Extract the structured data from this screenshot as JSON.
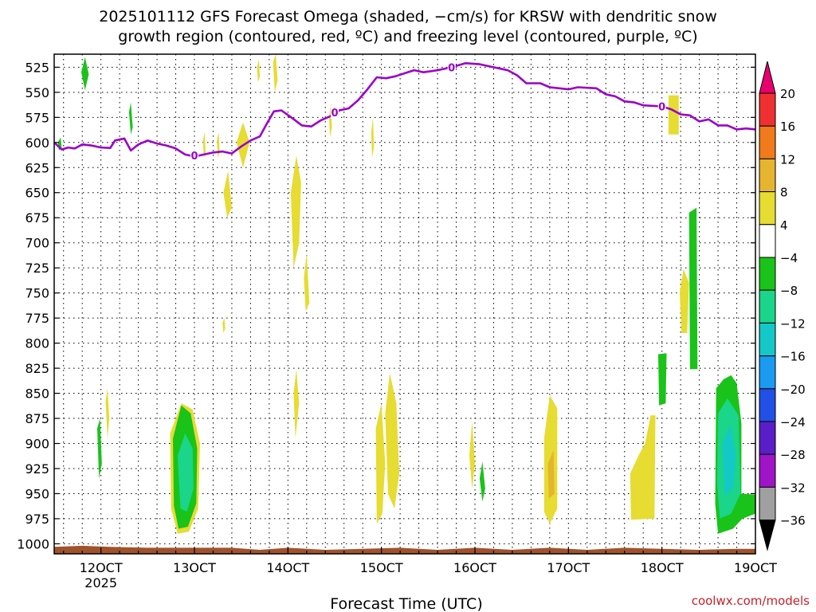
{
  "chart_data": {
    "type": "heatmap",
    "title_lines": [
      "2025101112 GFS Forecast Omega (shaded, −cm/s) for KRSW with dendritic snow",
      "growth region (contoured, red, ºC) and freezing level (contoured, purple, ºC)"
    ],
    "xlabel": "Forecast Time (UTC)",
    "credit": "coolwx.com/models",
    "x_axis": {
      "unit": "hours",
      "range": [
        115,
        190
      ],
      "ticks": [
        {
          "value": 120,
          "label": "12OCT",
          "sublabel": "2025"
        },
        {
          "value": 130,
          "label": "13OCT",
          "sublabel": ""
        },
        {
          "value": 140,
          "label": "14OCT",
          "sublabel": ""
        },
        {
          "value": 150,
          "label": "15OCT",
          "sublabel": ""
        },
        {
          "value": 160,
          "label": "16OCT",
          "sublabel": ""
        },
        {
          "value": 170,
          "label": "17OCT",
          "sublabel": ""
        },
        {
          "value": 180,
          "label": "18OCT",
          "sublabel": ""
        },
        {
          "value": 190,
          "label": "19OCT",
          "sublabel": ""
        }
      ]
    },
    "y_axis": {
      "unit": "hPa",
      "range": [
        1010,
        512
      ],
      "inverted": true,
      "ticks": [
        525,
        550,
        575,
        600,
        625,
        650,
        675,
        700,
        725,
        750,
        775,
        800,
        825,
        850,
        875,
        900,
        925,
        950,
        975,
        1000
      ]
    },
    "grid": true,
    "colorbar": {
      "labels": [
        "20",
        "16",
        "12",
        "8",
        "4",
        "−4",
        "−8",
        "−12",
        "−16",
        "−20",
        "−24",
        "−28",
        "−32",
        "−36"
      ],
      "colors": [
        "#e8006e",
        "#f03030",
        "#f07a1c",
        "#e6b42e",
        "#e6dc32",
        "#ffffff",
        "#19c319",
        "#1ad58a",
        "#14c8c8",
        "#1a9af0",
        "#2050e6",
        "#5a1ec8",
        "#a014c8",
        "#a0a0a0",
        "#000000"
      ]
    },
    "freezing_level": {
      "color": "#9b00c8",
      "label": "0",
      "points": [
        [
          115,
          600
        ],
        [
          115.8,
          607
        ],
        [
          116.5,
          605
        ],
        [
          117.2,
          606
        ],
        [
          118,
          602
        ],
        [
          119,
          603
        ],
        [
          120,
          605
        ],
        [
          121,
          605.5
        ],
        [
          121.5,
          598
        ],
        [
          122.5,
          596
        ],
        [
          123.2,
          608
        ],
        [
          124,
          602
        ],
        [
          125,
          598
        ],
        [
          126,
          601
        ],
        [
          127,
          603
        ],
        [
          128,
          606
        ],
        [
          129,
          612
        ],
        [
          130,
          614
        ],
        [
          131,
          612
        ],
        [
          132,
          610
        ],
        [
          133,
          609
        ],
        [
          134,
          611
        ],
        [
          135,
          604
        ],
        [
          136,
          598
        ],
        [
          137,
          594
        ],
        [
          137.7,
          582
        ],
        [
          138.5,
          569
        ],
        [
          139.3,
          568
        ],
        [
          140.5,
          576
        ],
        [
          141.5,
          583
        ],
        [
          142.5,
          584
        ],
        [
          143.5,
          578
        ],
        [
          144.5,
          574
        ],
        [
          145.5,
          568
        ],
        [
          146.5,
          566
        ],
        [
          147.5,
          558
        ],
        [
          148.5,
          547
        ],
        [
          149.5,
          535
        ],
        [
          150.5,
          536
        ],
        [
          151.5,
          534
        ],
        [
          152.5,
          531
        ],
        [
          153.5,
          528
        ],
        [
          154.5,
          530
        ],
        [
          156,
          528
        ],
        [
          157.5,
          525
        ],
        [
          159,
          521
        ],
        [
          160.5,
          522
        ],
        [
          162,
          525
        ],
        [
          163.5,
          528
        ],
        [
          164.5,
          533
        ],
        [
          165.5,
          541
        ],
        [
          167,
          541
        ],
        [
          168,
          545
        ],
        [
          170,
          547
        ],
        [
          171,
          545
        ],
        [
          173,
          546
        ],
        [
          174,
          552
        ],
        [
          175,
          554
        ],
        [
          176,
          559
        ],
        [
          177,
          560
        ],
        [
          178,
          563
        ],
        [
          180,
          564
        ],
        [
          181,
          567
        ],
        [
          182,
          572
        ],
        [
          183,
          573
        ],
        [
          184,
          579
        ],
        [
          185,
          577
        ],
        [
          186,
          583
        ],
        [
          187,
          583
        ],
        [
          188,
          587
        ],
        [
          189,
          586
        ],
        [
          190,
          587
        ]
      ],
      "label_points": [
        [
          130,
          613
        ],
        [
          145,
          570
        ],
        [
          157.5,
          525
        ],
        [
          180,
          564
        ]
      ]
    },
    "omega_regions": [
      {
        "color": "#e6dc32",
        "points": [
          [
            127.4,
            890
          ],
          [
            128.6,
            860
          ],
          [
            129.8,
            866
          ],
          [
            130.6,
            900
          ],
          [
            130.4,
            965
          ],
          [
            129.4,
            988
          ],
          [
            128.2,
            990
          ],
          [
            127.5,
            965
          ]
        ]
      },
      {
        "color": "#19c319",
        "points": [
          [
            127.7,
            895
          ],
          [
            128.6,
            862
          ],
          [
            129.6,
            870
          ],
          [
            130.3,
            905
          ],
          [
            130.2,
            960
          ],
          [
            129.3,
            983
          ],
          [
            128.3,
            985
          ],
          [
            127.8,
            962
          ]
        ]
      },
      {
        "color": "#1ad58a",
        "points": [
          [
            128.2,
            912
          ],
          [
            129.0,
            890
          ],
          [
            129.8,
            905
          ],
          [
            129.9,
            945
          ],
          [
            129.2,
            968
          ],
          [
            128.5,
            965
          ]
        ]
      },
      {
        "color": "#e6dc32",
        "points": [
          [
            133.1,
            650
          ],
          [
            133.6,
            628
          ],
          [
            134.0,
            665
          ],
          [
            133.5,
            675
          ]
        ]
      },
      {
        "color": "#e6dc32",
        "points": [
          [
            134.5,
            600
          ],
          [
            135.2,
            580
          ],
          [
            135.9,
            600
          ],
          [
            135.2,
            625
          ]
        ]
      },
      {
        "color": "#e6dc32",
        "points": [
          [
            140.3,
            650
          ],
          [
            140.9,
            613
          ],
          [
            141.4,
            640
          ],
          [
            141.2,
            700
          ],
          [
            140.6,
            725
          ]
        ]
      },
      {
        "color": "#e6dc32",
        "points": [
          [
            141.7,
            735
          ],
          [
            142.0,
            710
          ],
          [
            142.3,
            760
          ],
          [
            141.9,
            768
          ]
        ]
      },
      {
        "color": "#e6dc32",
        "points": [
          [
            140.6,
            850
          ],
          [
            140.9,
            826
          ],
          [
            141.2,
            860
          ],
          [
            140.8,
            895
          ]
        ]
      },
      {
        "color": "#e6dc32",
        "points": [
          [
            149.4,
            885
          ],
          [
            150.0,
            860
          ],
          [
            150.4,
            920
          ],
          [
            150.1,
            970
          ],
          [
            149.5,
            980
          ]
        ]
      },
      {
        "color": "#e6dc32",
        "points": [
          [
            150.4,
            870
          ],
          [
            150.9,
            830
          ],
          [
            151.6,
            860
          ],
          [
            151.9,
            930
          ],
          [
            151.4,
            965
          ],
          [
            150.7,
            950
          ]
        ]
      },
      {
        "color": "#e6dc32",
        "points": [
          [
            159.4,
            912
          ],
          [
            159.7,
            878
          ],
          [
            160.0,
            920
          ],
          [
            159.7,
            945
          ]
        ]
      },
      {
        "color": "#19c319",
        "points": [
          [
            160.5,
            935
          ],
          [
            160.8,
            918
          ],
          [
            161.1,
            945
          ],
          [
            160.8,
            958
          ]
        ]
      },
      {
        "color": "#e6dc32",
        "points": [
          [
            167.4,
            895
          ],
          [
            168.0,
            852
          ],
          [
            168.8,
            865
          ],
          [
            168.8,
            965
          ],
          [
            168.0,
            980
          ],
          [
            167.4,
            968
          ]
        ]
      },
      {
        "color": "#e6b42e",
        "points": [
          [
            167.8,
            920
          ],
          [
            168.4,
            907
          ],
          [
            168.5,
            950
          ],
          [
            167.9,
            955
          ]
        ]
      },
      {
        "color": "#e6dc32",
        "points": [
          [
            176.6,
            930
          ],
          [
            177.5,
            912
          ],
          [
            178.2,
            900
          ],
          [
            178.8,
            872
          ],
          [
            179.3,
            872
          ],
          [
            179.2,
            975
          ],
          [
            176.7,
            976
          ]
        ]
      },
      {
        "color": "#19c319",
        "points": [
          [
            179.6,
            811
          ],
          [
            180.5,
            810
          ],
          [
            180.4,
            860
          ],
          [
            179.7,
            862
          ]
        ]
      },
      {
        "color": "#e6dc32",
        "points": [
          [
            180.7,
            553
          ],
          [
            181.8,
            553
          ],
          [
            181.8,
            592
          ],
          [
            180.7,
            592
          ]
        ]
      },
      {
        "color": "#e6dc32",
        "points": [
          [
            181.9,
            750
          ],
          [
            182.3,
            726
          ],
          [
            182.9,
            740
          ],
          [
            182.7,
            790
          ],
          [
            182.1,
            790
          ]
        ]
      },
      {
        "color": "#19c319",
        "points": [
          [
            182.9,
            670
          ],
          [
            183.7,
            665
          ],
          [
            183.8,
            826
          ],
          [
            183.0,
            826
          ]
        ]
      },
      {
        "color": "#19c319",
        "points": [
          [
            185.8,
            845
          ],
          [
            186.6,
            836
          ],
          [
            187.4,
            832
          ],
          [
            188.0,
            840
          ],
          [
            188.5,
            880
          ],
          [
            188.5,
            950
          ],
          [
            190.0,
            951
          ],
          [
            190.0,
            970
          ],
          [
            188.6,
            975
          ],
          [
            187.6,
            985
          ],
          [
            186.0,
            990
          ],
          [
            185.7,
            960
          ]
        ]
      },
      {
        "color": "#1ad58a",
        "points": [
          [
            186.0,
            870
          ],
          [
            187.0,
            855
          ],
          [
            188.2,
            872
          ],
          [
            188.4,
            950
          ],
          [
            187.4,
            970
          ],
          [
            186.2,
            975
          ],
          [
            185.9,
            940
          ]
        ]
      },
      {
        "color": "#14c8c8",
        "points": [
          [
            186.5,
            900
          ],
          [
            187.3,
            882
          ],
          [
            187.9,
            912
          ],
          [
            187.6,
            945
          ],
          [
            186.7,
            952
          ]
        ]
      },
      {
        "color": "#19c319",
        "points": [
          [
            117.9,
            530
          ],
          [
            118.3,
            515
          ],
          [
            118.7,
            532
          ],
          [
            118.3,
            548
          ]
        ]
      },
      {
        "color": "#19c319",
        "points": [
          [
            119.6,
            885
          ],
          [
            119.9,
            875
          ],
          [
            120.1,
            920
          ],
          [
            119.8,
            935
          ]
        ]
      },
      {
        "color": "#e6dc32",
        "points": [
          [
            120.5,
            858
          ],
          [
            120.7,
            845
          ],
          [
            120.9,
            875
          ],
          [
            120.7,
            895
          ]
        ]
      },
      {
        "color": "#19c319",
        "points": [
          [
            115.4,
            600
          ],
          [
            115.7,
            595
          ],
          [
            115.8,
            605
          ],
          [
            115.5,
            608
          ]
        ]
      },
      {
        "color": "#19c319",
        "points": [
          [
            123.0,
            570
          ],
          [
            123.2,
            560
          ],
          [
            123.4,
            585
          ],
          [
            123.2,
            592
          ]
        ]
      },
      {
        "color": "#e6dc32",
        "points": [
          [
            136.7,
            525
          ],
          [
            136.9,
            517
          ],
          [
            137.0,
            534
          ],
          [
            136.8,
            540
          ]
        ]
      },
      {
        "color": "#e6dc32",
        "points": [
          [
            138.4,
            520
          ],
          [
            138.7,
            512
          ],
          [
            138.9,
            538
          ],
          [
            138.6,
            550
          ]
        ]
      },
      {
        "color": "#e6dc32",
        "points": [
          [
            144.4,
            575
          ],
          [
            144.6,
            560
          ],
          [
            144.7,
            585
          ],
          [
            144.5,
            595
          ]
        ]
      },
      {
        "color": "#e6dc32",
        "points": [
          [
            148.9,
            590
          ],
          [
            149.1,
            575
          ],
          [
            149.2,
            605
          ],
          [
            149.0,
            615
          ]
        ]
      },
      {
        "color": "#e6dc32",
        "points": [
          [
            130.9,
            598
          ],
          [
            131.1,
            590
          ],
          [
            131.2,
            612
          ],
          [
            131.0,
            615
          ]
        ]
      },
      {
        "color": "#e6dc32",
        "points": [
          [
            132.4,
            598
          ],
          [
            132.6,
            590
          ],
          [
            132.7,
            610
          ],
          [
            132.5,
            615
          ]
        ]
      },
      {
        "color": "#e6dc32",
        "points": [
          [
            133.0,
            780
          ],
          [
            133.2,
            775
          ],
          [
            133.3,
            785
          ],
          [
            133.1,
            790
          ]
        ]
      }
    ],
    "terrain": {
      "color": "#a0522d",
      "points": [
        [
          115,
          1003
        ],
        [
          118,
          1002
        ],
        [
          121,
          1003
        ],
        [
          125,
          1004
        ],
        [
          130,
          1004
        ],
        [
          134,
          1004
        ],
        [
          137,
          1006
        ],
        [
          140,
          1004
        ],
        [
          144,
          1006
        ],
        [
          148,
          1005
        ],
        [
          152,
          1004
        ],
        [
          156,
          1006
        ],
        [
          160,
          1004
        ],
        [
          164,
          1006
        ],
        [
          168,
          1004
        ],
        [
          172,
          1006
        ],
        [
          176,
          1004
        ],
        [
          180,
          1005
        ],
        [
          184,
          1006
        ],
        [
          188,
          1005
        ],
        [
          190,
          1005
        ]
      ]
    }
  }
}
